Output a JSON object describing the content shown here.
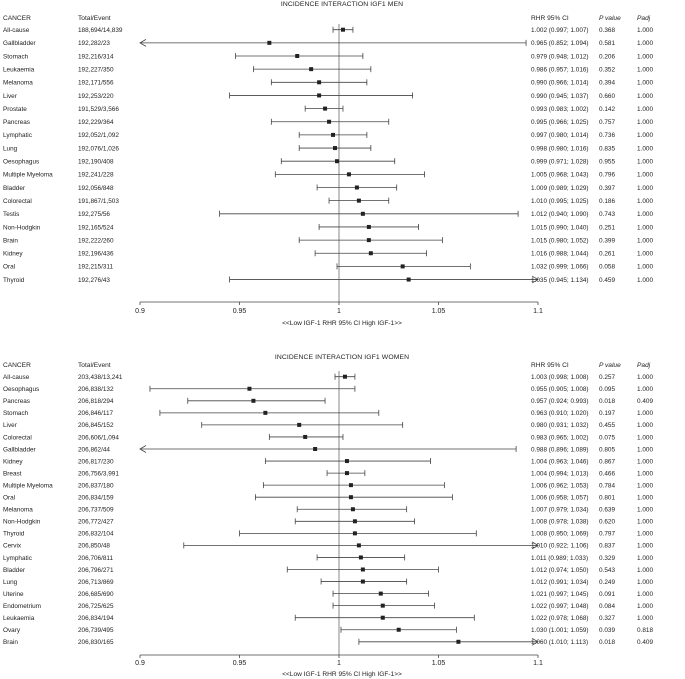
{
  "chart_data": [
    {
      "type": "forest",
      "title": "INCIDENCE INTERACTION IGF1 MEN",
      "headers": {
        "cancer": "CANCER",
        "total": "Total/Event",
        "ci": "RHR 95% CI",
        "p": "P value",
        "padj": "Padj"
      },
      "xlim": [
        0.9,
        1.1
      ],
      "ticks": [
        {
          "v": 0.9,
          "label": "0.9"
        },
        {
          "v": 0.95,
          "label": "0.95"
        },
        {
          "v": 1.0,
          "label": "1"
        },
        {
          "v": 1.05,
          "label": "1.05"
        },
        {
          "v": 1.1,
          "label": "1.1"
        }
      ],
      "xlabel": "<<Low IGF-1 RHR 95% CI High IGF-1>>",
      "rows": [
        {
          "name": "All-cause",
          "total": "188,694/14,839",
          "est": 1.002,
          "lo": 0.997,
          "hi": 1.007,
          "ci": "1.002 (0.997; 1.007)",
          "p": "0.368",
          "padj": "1.000"
        },
        {
          "name": "Gallbladder",
          "total": "192,282/23",
          "est": 0.965,
          "lo": 0.852,
          "hi": 1.094,
          "ci": "0.965 (0.852; 1.094)",
          "p": "0.581",
          "padj": "1.000"
        },
        {
          "name": "Stomach",
          "total": "192,216/314",
          "est": 0.979,
          "lo": 0.948,
          "hi": 1.012,
          "ci": "0.979 (0.948; 1.012)",
          "p": "0.206",
          "padj": "1.000"
        },
        {
          "name": "Leukaemia",
          "total": "192,227/350",
          "est": 0.986,
          "lo": 0.957,
          "hi": 1.016,
          "ci": "0.986 (0.957; 1.016)",
          "p": "0.352",
          "padj": "1.000"
        },
        {
          "name": "Melanoma",
          "total": "192,171/556",
          "est": 0.99,
          "lo": 0.966,
          "hi": 1.014,
          "ci": "0.990 (0.966; 1.014)",
          "p": "0.394",
          "padj": "1.000"
        },
        {
          "name": "Liver",
          "total": "192,253/220",
          "est": 0.99,
          "lo": 0.945,
          "hi": 1.037,
          "ci": "0.990 (0.945; 1.037)",
          "p": "0.660",
          "padj": "1.000"
        },
        {
          "name": "Prostate",
          "total": "191,529/3,566",
          "est": 0.993,
          "lo": 0.983,
          "hi": 1.002,
          "ci": "0.993 (0.983; 1.002)",
          "p": "0.142",
          "padj": "1.000"
        },
        {
          "name": "Pancreas",
          "total": "192,229/364",
          "est": 0.995,
          "lo": 0.966,
          "hi": 1.025,
          "ci": "0.995 (0.966; 1.025)",
          "p": "0.757",
          "padj": "1.000"
        },
        {
          "name": "Lymphatic",
          "total": "192,052/1,092",
          "est": 0.997,
          "lo": 0.98,
          "hi": 1.014,
          "ci": "0.997 (0.980; 1.014)",
          "p": "0.736",
          "padj": "1.000"
        },
        {
          "name": "Lung",
          "total": "192,076/1,026",
          "est": 0.998,
          "lo": 0.98,
          "hi": 1.016,
          "ci": "0.998 (0.980; 1.016)",
          "p": "0.835",
          "padj": "1.000"
        },
        {
          "name": "Oesophagus",
          "total": "192,190/408",
          "est": 0.999,
          "lo": 0.971,
          "hi": 1.028,
          "ci": "0.999 (0.971; 1.028)",
          "p": "0.955",
          "padj": "1.000"
        },
        {
          "name": "Multiple Myeloma",
          "total": "192,241/228",
          "est": 1.005,
          "lo": 0.968,
          "hi": 1.043,
          "ci": "1.005 (0.968; 1.043)",
          "p": "0.796",
          "padj": "1.000"
        },
        {
          "name": "Bladder",
          "total": "192,056/848",
          "est": 1.009,
          "lo": 0.989,
          "hi": 1.029,
          "ci": "1.009 (0.989; 1.029)",
          "p": "0.397",
          "padj": "1.000"
        },
        {
          "name": "Colorectal",
          "total": "191,867/1,503",
          "est": 1.01,
          "lo": 0.995,
          "hi": 1.025,
          "ci": "1.010 (0.995; 1.025)",
          "p": "0.186",
          "padj": "1.000"
        },
        {
          "name": "Testis",
          "total": "192,275/56",
          "est": 1.012,
          "lo": 0.94,
          "hi": 1.09,
          "ci": "1.012 (0.940; 1.090)",
          "p": "0.743",
          "padj": "1.000"
        },
        {
          "name": "Non-Hodgkin",
          "total": "192,165/524",
          "est": 1.015,
          "lo": 0.99,
          "hi": 1.04,
          "ci": "1.015 (0.990; 1.040)",
          "p": "0.251",
          "padj": "1.000"
        },
        {
          "name": "Brain",
          "total": "192,222/260",
          "est": 1.015,
          "lo": 0.98,
          "hi": 1.052,
          "ci": "1.015 (0.980; 1.052)",
          "p": "0.399",
          "padj": "1.000"
        },
        {
          "name": "Kidney",
          "total": "192,196/436",
          "est": 1.016,
          "lo": 0.988,
          "hi": 1.044,
          "ci": "1.016 (0.988; 1.044)",
          "p": "0.261",
          "padj": "1.000"
        },
        {
          "name": "Oral",
          "total": "192,215/311",
          "est": 1.032,
          "lo": 0.999,
          "hi": 1.066,
          "ci": "1.032 (0.999; 1.066)",
          "p": "0.058",
          "padj": "1.000"
        },
        {
          "name": "Thyroid",
          "total": "192,276/43",
          "est": 1.035,
          "lo": 0.945,
          "hi": 1.134,
          "ci": "1.035 (0.945; 1.134)",
          "p": "0.459",
          "padj": "1.000"
        }
      ]
    },
    {
      "type": "forest",
      "title": "INCIDENCE INTERACTION IGF1 WOMEN",
      "headers": {
        "cancer": "CANCER",
        "total": "Total/Event",
        "ci": "RHR 95% CI",
        "p": "P value",
        "padj": "Padj"
      },
      "xlim": [
        0.9,
        1.1
      ],
      "ticks": [
        {
          "v": 0.9,
          "label": "0.9"
        },
        {
          "v": 0.95,
          "label": "0.95"
        },
        {
          "v": 1.0,
          "label": "1"
        },
        {
          "v": 1.05,
          "label": "1.05"
        },
        {
          "v": 1.1,
          "label": "1.1"
        }
      ],
      "xlabel": "<<Low IGF-1 RHR 95% CI High IGF-1>>",
      "rows": [
        {
          "name": "All-cause",
          "total": "203,438/13,241",
          "est": 1.003,
          "lo": 0.998,
          "hi": 1.008,
          "ci": "1.003 (0.998; 1.008)",
          "p": "0.257",
          "padj": "1.000"
        },
        {
          "name": "Oesophagus",
          "total": "206,838/132",
          "est": 0.955,
          "lo": 0.905,
          "hi": 1.008,
          "ci": "0.955 (0.905; 1.008)",
          "p": "0.095",
          "padj": "1.000"
        },
        {
          "name": "Pancreas",
          "total": "206,818/294",
          "est": 0.957,
          "lo": 0.924,
          "hi": 0.993,
          "ci": "0.957 (0.924; 0.993)",
          "p": "0.018",
          "padj": "0.409"
        },
        {
          "name": "Stomach",
          "total": "206,846/117",
          "est": 0.963,
          "lo": 0.91,
          "hi": 1.02,
          "ci": "0.963 (0.910; 1.020)",
          "p": "0.197",
          "padj": "1.000"
        },
        {
          "name": "Liver",
          "total": "206,845/152",
          "est": 0.98,
          "lo": 0.931,
          "hi": 1.032,
          "ci": "0.980 (0.931; 1.032)",
          "p": "0.455",
          "padj": "1.000"
        },
        {
          "name": "Colorectal",
          "total": "206,606/1,094",
          "est": 0.983,
          "lo": 0.965,
          "hi": 1.002,
          "ci": "0.983 (0.965; 1.002)",
          "p": "0.075",
          "padj": "1.000"
        },
        {
          "name": "Gallbladder",
          "total": "206,862/44",
          "est": 0.988,
          "lo": 0.896,
          "hi": 1.089,
          "ci": "0.988 (0.896; 1.089)",
          "p": "0.805",
          "padj": "1.000"
        },
        {
          "name": "Kidney",
          "total": "206,817/230",
          "est": 1.004,
          "lo": 0.963,
          "hi": 1.046,
          "ci": "1.004 (0.963; 1.046)",
          "p": "0.867",
          "padj": "1.000"
        },
        {
          "name": "Breast",
          "total": "206,756/3,991",
          "est": 1.004,
          "lo": 0.994,
          "hi": 1.013,
          "ci": "1.004 (0.994; 1.013)",
          "p": "0.466",
          "padj": "1.000"
        },
        {
          "name": "Multiple Myeloma",
          "total": "206,837/180",
          "est": 1.006,
          "lo": 0.962,
          "hi": 1.053,
          "ci": "1.006 (0.962; 1.053)",
          "p": "0.784",
          "padj": "1.000"
        },
        {
          "name": "Oral",
          "total": "206,834/159",
          "est": 1.006,
          "lo": 0.958,
          "hi": 1.057,
          "ci": "1.006 (0.958; 1.057)",
          "p": "0.801",
          "padj": "1.000"
        },
        {
          "name": "Melanoma",
          "total": "206,737/509",
          "est": 1.007,
          "lo": 0.979,
          "hi": 1.034,
          "ci": "1.007 (0.979; 1.034)",
          "p": "0.639",
          "padj": "1.000"
        },
        {
          "name": "Non-Hodgkin",
          "total": "206,772/427",
          "est": 1.008,
          "lo": 0.978,
          "hi": 1.038,
          "ci": "1.008 (0.978; 1.038)",
          "p": "0.620",
          "padj": "1.000"
        },
        {
          "name": "Thyroid",
          "total": "206,832/104",
          "est": 1.008,
          "lo": 0.95,
          "hi": 1.069,
          "ci": "1.008 (0.950; 1.069)",
          "p": "0.797",
          "padj": "1.000"
        },
        {
          "name": "Cervix",
          "total": "206,850/48",
          "est": 1.01,
          "lo": 0.922,
          "hi": 1.106,
          "ci": "1.010 (0.922; 1.106)",
          "p": "0.837",
          "padj": "1.000"
        },
        {
          "name": "Lymphatic",
          "total": "206,706/811",
          "est": 1.011,
          "lo": 0.989,
          "hi": 1.033,
          "ci": "1.011 (0.989; 1.033)",
          "p": "0.329",
          "padj": "1.000"
        },
        {
          "name": "Bladder",
          "total": "206,796/271",
          "est": 1.012,
          "lo": 0.974,
          "hi": 1.05,
          "ci": "1.012 (0.974; 1.050)",
          "p": "0.543",
          "padj": "1.000"
        },
        {
          "name": "Lung",
          "total": "206,713/869",
          "est": 1.012,
          "lo": 0.991,
          "hi": 1.034,
          "ci": "1.012 (0.991; 1.034)",
          "p": "0.249",
          "padj": "1.000"
        },
        {
          "name": "Uterine",
          "total": "206,685/690",
          "est": 1.021,
          "lo": 0.997,
          "hi": 1.045,
          "ci": "1.021 (0.997; 1.045)",
          "p": "0.091",
          "padj": "1.000"
        },
        {
          "name": "Endometrium",
          "total": "206,725/625",
          "est": 1.022,
          "lo": 0.997,
          "hi": 1.048,
          "ci": "1.022 (0.997; 1.048)",
          "p": "0.084",
          "padj": "1.000"
        },
        {
          "name": "Leukaemia",
          "total": "206,834/194",
          "est": 1.022,
          "lo": 0.978,
          "hi": 1.068,
          "ci": "1.022 (0.978; 1.068)",
          "p": "0.327",
          "padj": "1.000"
        },
        {
          "name": "Ovary",
          "total": "206,739/495",
          "est": 1.03,
          "lo": 1.001,
          "hi": 1.059,
          "ci": "1.030 (1.001; 1.059)",
          "p": "0.039",
          "padj": "0.818"
        },
        {
          "name": "Brain",
          "total": "206,830/165",
          "est": 1.06,
          "lo": 1.01,
          "hi": 1.113,
          "ci": "1.060 (1.010; 1.113)",
          "p": "0.018",
          "padj": "0.409"
        }
      ]
    }
  ]
}
